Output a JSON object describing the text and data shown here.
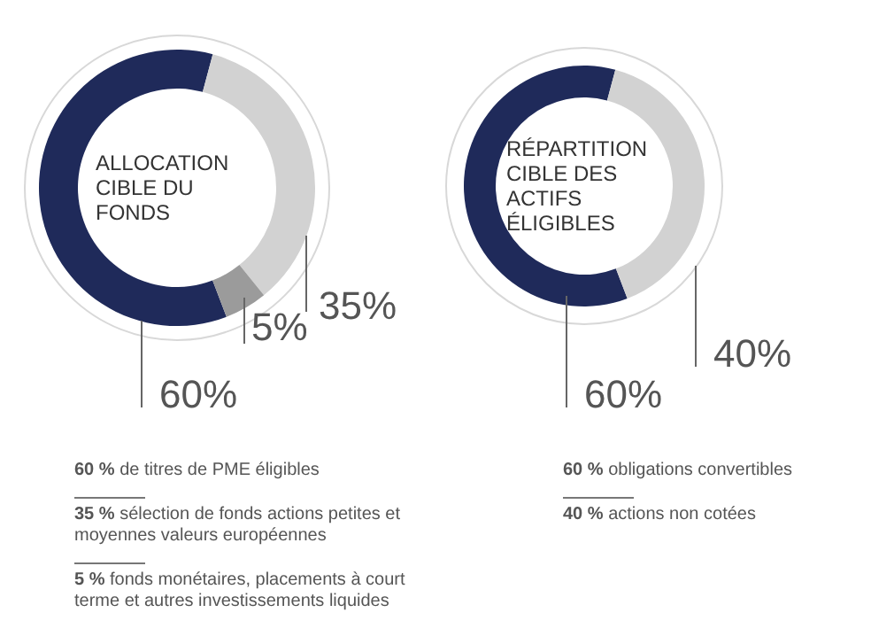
{
  "chart_data": [
    {
      "type": "donut",
      "title": "ALLOCATION CIBLE DU FONDS",
      "categories": [
        null,
        null,
        null
      ],
      "values": [
        60,
        35,
        5
      ],
      "colors": [
        "#1f2a5a",
        "#d2d2d2",
        "#9b9b9b"
      ],
      "value_labels": [
        "60%",
        "35%",
        "5%"
      ],
      "annotations": [
        "60 % de titres de PME éligibles",
        "35 % sélection de fonds actions petites et moyennes valeurs européennes",
        "5 % fonds monétaires, placements à court terme et autres investissements liquides"
      ]
    },
    {
      "type": "donut",
      "title": "RÉPARTITION CIBLE DES ACTIFS ÉLIGIBLES",
      "categories": [
        null,
        null
      ],
      "values": [
        60,
        40
      ],
      "colors": [
        "#1f2a5a",
        "#d2d2d2"
      ],
      "value_labels": [
        "60%",
        "40%"
      ],
      "annotations": [
        "60 % obligations convertibles",
        "40 % actions non cotées"
      ]
    }
  ]
}
